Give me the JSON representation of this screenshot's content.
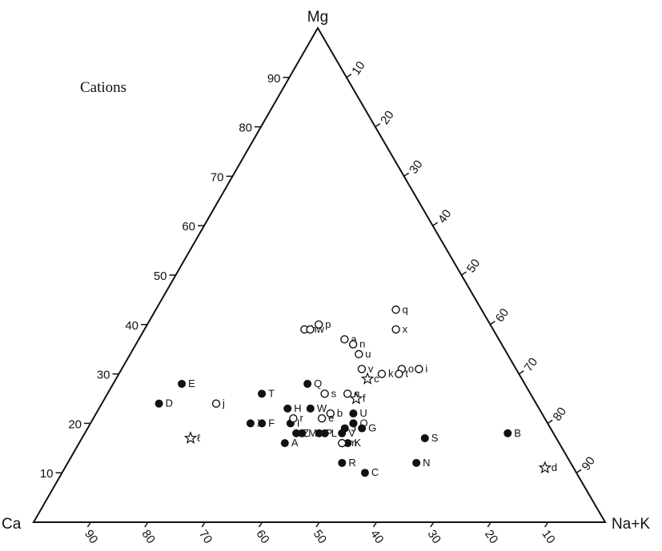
{
  "chart_data": {
    "type": "ternary-scatter",
    "title": "Cations",
    "axes": {
      "top": "Mg",
      "left": "Ca",
      "right": "Na+K"
    },
    "ticks": [
      10,
      20,
      30,
      40,
      50,
      60,
      70,
      80,
      90
    ],
    "grid": false,
    "legend": "none",
    "units": "percent",
    "series": [
      {
        "marker": "filled-circle",
        "points": [
          {
            "label": "A",
            "ca": 48,
            "mg": 16,
            "nak": 36
          },
          {
            "label": "B",
            "ca": 8,
            "mg": 18,
            "nak": 74
          },
          {
            "label": "C",
            "ca": 37,
            "mg": 10,
            "nak": 53
          },
          {
            "label": "D",
            "ca": 66,
            "mg": 24,
            "nak": 10
          },
          {
            "label": "E",
            "ca": 60,
            "mg": 28,
            "nak": 12
          },
          {
            "label": "F",
            "ca": 50,
            "mg": 20,
            "nak": 30
          },
          {
            "label": "G",
            "ca": 33,
            "mg": 19,
            "nak": 48
          },
          {
            "label": "H",
            "ca": 44,
            "mg": 23,
            "nak": 33
          },
          {
            "label": "I",
            "ca": 45,
            "mg": 20,
            "nak": 35
          },
          {
            "label": "J",
            "ca": 36,
            "mg": 19,
            "nak": 45
          },
          {
            "label": "K",
            "ca": 37,
            "mg": 16,
            "nak": 47
          },
          {
            "label": "L",
            "ca": 40,
            "mg": 18,
            "nak": 42
          },
          {
            "label": "M",
            "ca": 44,
            "mg": 18,
            "nak": 38
          },
          {
            "label": "N",
            "ca": 27,
            "mg": 12,
            "nak": 61
          },
          {
            "label": "O",
            "ca": 34,
            "mg": 20,
            "nak": 46
          },
          {
            "label": "P",
            "ca": 41,
            "mg": 18,
            "nak": 41
          },
          {
            "label": "Q",
            "ca": 38,
            "mg": 28,
            "nak": 34
          },
          {
            "label": "R",
            "ca": 40,
            "mg": 12,
            "nak": 48
          },
          {
            "label": "S",
            "ca": 23,
            "mg": 17,
            "nak": 60
          },
          {
            "label": "T",
            "ca": 47,
            "mg": 26,
            "nak": 27
          },
          {
            "label": "U",
            "ca": 33,
            "mg": 22,
            "nak": 45
          },
          {
            "label": "V",
            "ca": 37,
            "mg": 18,
            "nak": 45
          },
          {
            "label": "W",
            "ca": 40,
            "mg": 23,
            "nak": 37
          },
          {
            "label": "X",
            "ca": 52,
            "mg": 20,
            "nak": 28
          },
          {
            "label": "Z",
            "ca": 45,
            "mg": 18,
            "nak": 37
          },
          {
            "label": "",
            "ca": 34,
            "mg": 20,
            "nak": 46
          }
        ]
      },
      {
        "marker": "open-circle",
        "points": [
          {
            "label": "a",
            "ca": 27,
            "mg": 37,
            "nak": 36
          },
          {
            "label": "b",
            "ca": 37,
            "mg": 22,
            "nak": 41
          },
          {
            "label": "e",
            "ca": 39,
            "mg": 21,
            "nak": 40
          },
          {
            "label": "g",
            "ca": 32,
            "mg": 26,
            "nak": 42
          },
          {
            "label": "h",
            "ca": 33,
            "mg": 39,
            "nak": 28
          },
          {
            "label": "i",
            "ca": 17,
            "mg": 31,
            "nak": 52
          },
          {
            "label": "j",
            "ca": 56,
            "mg": 24,
            "nak": 20
          },
          {
            "label": "k",
            "ca": 24,
            "mg": 30,
            "nak": 46
          },
          {
            "label": "m",
            "ca": 38,
            "mg": 16,
            "nak": 46
          },
          {
            "label": "n",
            "ca": 26,
            "mg": 36,
            "nak": 38
          },
          {
            "label": "o",
            "ca": 20,
            "mg": 31,
            "nak": 49
          },
          {
            "label": "p",
            "ca": 30,
            "mg": 40,
            "nak": 30
          },
          {
            "label": "q",
            "ca": 15,
            "mg": 43,
            "nak": 42
          },
          {
            "label": "r",
            "ca": 44,
            "mg": 21,
            "nak": 35
          },
          {
            "label": "s",
            "ca": 36,
            "mg": 26,
            "nak": 38
          },
          {
            "label": "t",
            "ca": 21,
            "mg": 30,
            "nak": 49
          },
          {
            "label": "u",
            "ca": 26,
            "mg": 34,
            "nak": 40
          },
          {
            "label": "v",
            "ca": 27,
            "mg": 31,
            "nak": 42
          },
          {
            "label": "w",
            "ca": 32,
            "mg": 39,
            "nak": 29
          },
          {
            "label": "x",
            "ca": 17,
            "mg": 39,
            "nak": 44
          }
        ]
      },
      {
        "marker": "open-star",
        "points": [
          {
            "label": "c",
            "ca": 27,
            "mg": 29,
            "nak": 44
          },
          {
            "label": "d",
            "ca": 5,
            "mg": 11,
            "nak": 84
          },
          {
            "label": "f",
            "ca": 31,
            "mg": 25,
            "nak": 44
          },
          {
            "label": "ℓ",
            "ca": 64,
            "mg": 17,
            "nak": 19
          }
        ]
      }
    ]
  }
}
